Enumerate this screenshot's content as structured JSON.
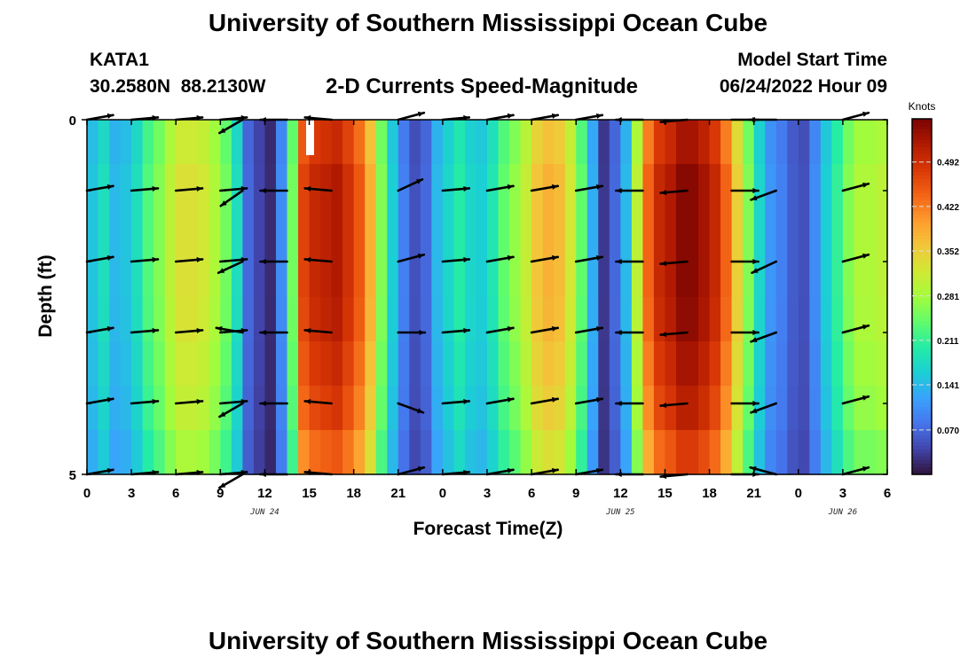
{
  "page": {
    "title": "University of Southern Mississippi Ocean Cube",
    "title_repeat": "University of Southern Mississippi Ocean Cube",
    "station_id": "KATA1",
    "station_coords": "30.2580N  88.2130W",
    "subtitle": "2-D Currents Speed-Magnitude",
    "model_start_label": "Model Start Time",
    "model_start_value": "06/24/2022 Hour 09"
  },
  "chart_data": {
    "type": "heatmap",
    "title": "2-D Currents Speed-Magnitude",
    "xlabel": "Forecast Time(Z)",
    "ylabel": "Depth (ft)",
    "x_start_hour": 0,
    "x_hours": 54,
    "x_ticks": [
      {
        "hour": 0,
        "label": "0"
      },
      {
        "hour": 3,
        "label": "3"
      },
      {
        "hour": 6,
        "label": "6"
      },
      {
        "hour": 9,
        "label": "9"
      },
      {
        "hour": 12,
        "label": "12"
      },
      {
        "hour": 15,
        "label": "15"
      },
      {
        "hour": 18,
        "label": "18"
      },
      {
        "hour": 21,
        "label": "21"
      },
      {
        "hour": 24,
        "label": "0"
      },
      {
        "hour": 27,
        "label": "3"
      },
      {
        "hour": 30,
        "label": "6"
      },
      {
        "hour": 33,
        "label": "9"
      },
      {
        "hour": 36,
        "label": "12"
      },
      {
        "hour": 39,
        "label": "15"
      },
      {
        "hour": 42,
        "label": "18"
      },
      {
        "hour": 45,
        "label": "21"
      },
      {
        "hour": 48,
        "label": "0"
      },
      {
        "hour": 51,
        "label": "3"
      },
      {
        "hour": 54,
        "label": "6"
      }
    ],
    "date_labels": [
      {
        "hour": 12,
        "label": "JUN 24"
      },
      {
        "hour": 36,
        "label": "JUN 25"
      },
      {
        "hour": 51,
        "label": "JUN 26"
      }
    ],
    "y_range": [
      0,
      5
    ],
    "y_ticks": [
      {
        "value": 0,
        "label": "0"
      },
      {
        "value": 5,
        "label": "5"
      }
    ],
    "colorbar": {
      "label": "Knots",
      "min": 0.0,
      "max": 0.56,
      "ticks": [
        "0.070",
        "0.141",
        "0.211",
        "0.281",
        "0.352",
        "0.422",
        "0.492"
      ],
      "tick_values": [
        0.07,
        0.141,
        0.211,
        0.281,
        0.352,
        0.422,
        0.492
      ]
    },
    "colormap": [
      "#30123b",
      "#4145ab",
      "#4675ed",
      "#39a2fc",
      "#1bcfd4",
      "#24eca6",
      "#61fc6c",
      "#a4fc3b",
      "#d1e834",
      "#f3c63a",
      "#fe9b2d",
      "#f36315",
      "#d93806",
      "#b11901",
      "#7a0402"
    ],
    "speed_series_knots": [
      0.15,
      0.18,
      0.14,
      0.15,
      0.18,
      0.23,
      0.26,
      0.3,
      0.33,
      0.33,
      0.32,
      0.29,
      0.25,
      0.18,
      0.07,
      0.04,
      0.02,
      0.1,
      0.25,
      0.47,
      0.5,
      0.51,
      0.52,
      0.49,
      0.45,
      0.38,
      0.26,
      0.16,
      0.09,
      0.05,
      0.07,
      0.14,
      0.17,
      0.2,
      0.17,
      0.16,
      0.19,
      0.24,
      0.27,
      0.31,
      0.36,
      0.38,
      0.37,
      0.32,
      0.24,
      0.13,
      0.03,
      0.07,
      0.14,
      0.3,
      0.44,
      0.5,
      0.52,
      0.55,
      0.55,
      0.53,
      0.5,
      0.44,
      0.35,
      0.26,
      0.17,
      0.11,
      0.09,
      0.06,
      0.05,
      0.1,
      0.16,
      0.21,
      0.26,
      0.29,
      0.29,
      0.3
    ],
    "depth_factor": [
      0.96,
      1.0,
      1.0,
      1.0,
      0.99,
      0.96,
      0.93,
      0.87
    ],
    "vector_rows_ft": [
      0,
      1,
      2,
      3,
      4,
      5
    ],
    "vector_hours": [
      0,
      3,
      6,
      9,
      10.5,
      13.5,
      16.5,
      21,
      24,
      27,
      30,
      33,
      37.5,
      40.5,
      43.5,
      46.5,
      51
    ],
    "vector_angles_deg": [
      10,
      5,
      5,
      5,
      -150,
      180,
      175,
      15,
      5,
      10,
      10,
      10,
      180,
      -175,
      0,
      165,
      15
    ],
    "vector_row_overrides": [
      {
        "row": 0,
        "hour": 10.5,
        "angle": -150
      },
      {
        "row": 0,
        "hour": 37.5,
        "angle": 180
      },
      {
        "row": 0,
        "hour": 46.5,
        "angle": 180
      },
      {
        "row": 1,
        "hour": 10.5,
        "angle": -145
      },
      {
        "row": 1,
        "hour": 21,
        "angle": 25
      },
      {
        "row": 1,
        "hour": 46.5,
        "angle": -160
      },
      {
        "row": 2,
        "hour": 10.5,
        "angle": -155
      },
      {
        "row": 2,
        "hour": 46.5,
        "angle": -155
      },
      {
        "row": 3,
        "hour": 10.5,
        "angle": 170
      },
      {
        "row": 3,
        "hour": 21,
        "angle": 0
      },
      {
        "row": 3,
        "hour": 46.5,
        "angle": -160
      },
      {
        "row": 4,
        "hour": 21,
        "angle": -20
      },
      {
        "row": 4,
        "hour": 46.5,
        "angle": -160
      }
    ]
  }
}
